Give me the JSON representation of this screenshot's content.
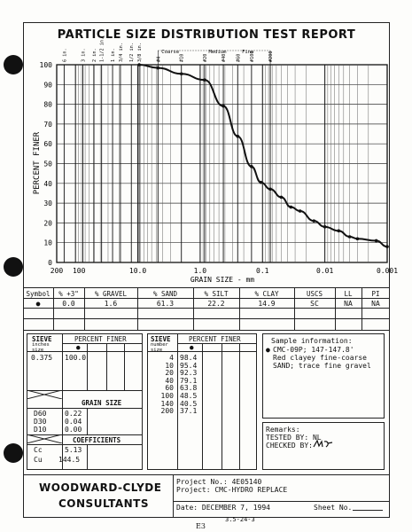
{
  "report": {
    "title": "PARTICLE SIZE DISTRIBUTION TEST REPORT",
    "page_marker": "E3",
    "page_ref": "3.5-24-3"
  },
  "chart_data": {
    "type": "line",
    "xscale": "log",
    "xlim": [
      200,
      0.001
    ],
    "ylim": [
      0,
      100
    ],
    "xlabel": "GRAIN SIZE - mm",
    "ylabel": "PERCENT FINER",
    "x_ticks": [
      "200",
      "100",
      "10.0",
      "1.0",
      "0.1",
      "0.01",
      "0.001"
    ],
    "y_ticks": [
      "0",
      "10",
      "20",
      "30",
      "40",
      "50",
      "60",
      "70",
      "80",
      "90",
      "100"
    ],
    "sieve_labels": [
      "6 in.",
      "3 in.",
      "2 in.",
      "1-1/2 in.",
      "1 in.",
      "3/4 in.",
      "1/2 in.",
      "3/8 in.",
      "#4",
      "#10",
      "#20",
      "#40",
      "#60",
      "#100",
      "#200"
    ],
    "sand_labels": [
      "Coarse",
      "Medium",
      "Fine"
    ],
    "grid": true,
    "series": [
      {
        "x": [
          9.5,
          4.75,
          2.0,
          0.85,
          0.425,
          0.25,
          0.15,
          0.106,
          0.075,
          0.05,
          0.035,
          0.025,
          0.015,
          0.01,
          0.006,
          0.004,
          0.003,
          0.0015,
          0.001
        ],
        "y": [
          100,
          98.4,
          95.4,
          92.3,
          79.1,
          63.8,
          48.5,
          40.5,
          37.1,
          33,
          28,
          26,
          21,
          18,
          16,
          13,
          12,
          11,
          8
        ]
      }
    ]
  },
  "summary": {
    "headers": [
      "Symbol",
      "% +3\"",
      "% GRAVEL",
      "% SAND",
      "% SILT",
      "% CLAY",
      "USCS",
      "LL",
      "PI"
    ],
    "row": [
      "●",
      "0.0",
      "1.6",
      "61.3",
      "22.2",
      "14.9",
      "SC",
      "NA",
      "NA"
    ]
  },
  "sieve_inches": {
    "header_sieve": "SIEVE",
    "header_sub": "inches size",
    "header_finer": "PERCENT FINER",
    "symbol": "●",
    "rows": [
      {
        "size": "0.375",
        "finer": "100.0"
      }
    ]
  },
  "grain_size": {
    "header": "GRAIN SIZE",
    "rows": [
      {
        "label": "D60",
        "value": "0.22"
      },
      {
        "label": "D30",
        "value": "0.04"
      },
      {
        "label": "D10",
        "value": "0.00"
      }
    ]
  },
  "coefficients": {
    "header": "COEFFICIENTS",
    "rows": [
      {
        "label": "Cc",
        "value": "5.13"
      },
      {
        "label": "Cu",
        "value": "144.5"
      }
    ]
  },
  "sieve_number": {
    "header_sieve": "SIEVE",
    "header_sub": "number size",
    "header_finer": "PERCENT FINER",
    "symbol": "●",
    "rows": [
      {
        "size": "4",
        "finer": "98.4"
      },
      {
        "size": "10",
        "finer": "95.4"
      },
      {
        "size": "20",
        "finer": "92.3"
      },
      {
        "size": "40",
        "finer": "79.1"
      },
      {
        "size": "60",
        "finer": "63.8"
      },
      {
        "size": "100",
        "finer": "48.5"
      },
      {
        "size": "140",
        "finer": "40.5"
      },
      {
        "size": "200",
        "finer": "37.1"
      }
    ]
  },
  "sample_info": {
    "heading": "Sample information:",
    "line1": "CMC-09P; 147-147.8'",
    "line2": "Red clayey fine-coarse",
    "line3": "SAND; trace fine gravel"
  },
  "remarks": {
    "heading": "Remarks:",
    "tested": "TESTED BY: NL",
    "checked": "CHECKED BY:"
  },
  "footer": {
    "company_line1": "WOODWARD-CLYDE",
    "company_line2": "CONSULTANTS",
    "project_no": "Project No.: 4E05140",
    "project": "Project: CMC-HYDRO REPLACE",
    "date": "Date: DECEMBER 7, 1994",
    "sheet": "Sheet No."
  }
}
